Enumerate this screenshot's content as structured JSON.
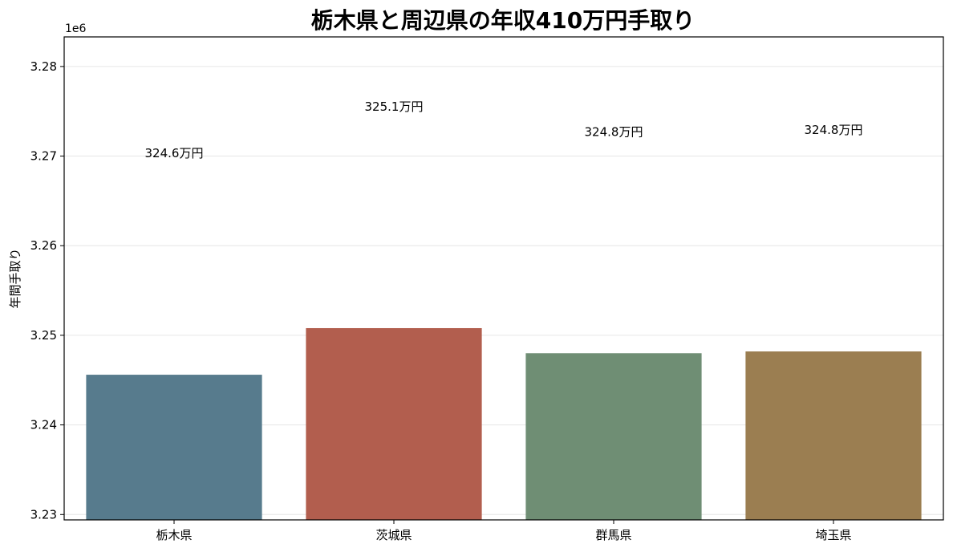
{
  "chart_data": {
    "type": "bar",
    "title": "栃木県と周辺県の年収410万円手取り",
    "xlabel": "",
    "ylabel": "年間手取り",
    "y_offset_label": "1e6",
    "categories": [
      "栃木県",
      "茨城県",
      "群馬県",
      "埼玉県"
    ],
    "values": [
      3245600,
      3250800,
      3248000,
      3248200
    ],
    "data_labels": [
      "324.6万円",
      "325.1万円",
      "324.8万円",
      "324.8万円"
    ],
    "colors": [
      "#577b8d",
      "#b25e4e",
      "#6f8e74",
      "#9b7e51"
    ],
    "ylim": [
      3229400,
      3283300
    ],
    "yticks": [
      3230000,
      3240000,
      3250000,
      3260000,
      3270000,
      3280000
    ],
    "ytick_labels": [
      "3.23",
      "3.24",
      "3.25",
      "3.26",
      "3.27",
      "3.28"
    ],
    "grid": true,
    "legend": "none"
  }
}
